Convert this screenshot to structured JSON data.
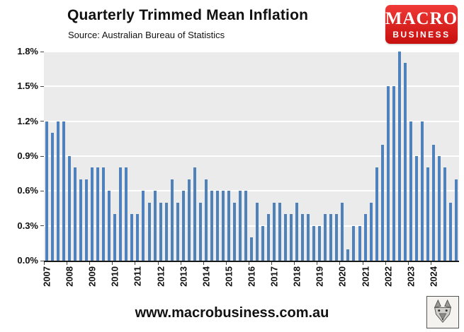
{
  "header": {
    "title": "Quarterly Trimmed Mean Inflation",
    "subtitle": "Source: Australian Bureau of Statistics",
    "logo": {
      "line1": "MACRO",
      "line2": "BUSINESS",
      "bg_color": "#d71920"
    }
  },
  "footer": {
    "url": "www.macrobusiness.com.au",
    "logo_icon": "wolf-head"
  },
  "chart_data": {
    "type": "bar",
    "title": "Quarterly Trimmed Mean Inflation",
    "subtitle": "Source: Australian Bureau of Statistics",
    "xlabel": "",
    "ylabel": "",
    "ylim": [
      0,
      1.8
    ],
    "grid": true,
    "plot_bg_color": "#ebebeb",
    "gridline_color": "#ffffff",
    "bar_color": "#4f81bd",
    "yticks": [
      {
        "value": 0.0,
        "label": "0.0%"
      },
      {
        "value": 0.3,
        "label": "0.3%"
      },
      {
        "value": 0.6,
        "label": "0.6%"
      },
      {
        "value": 0.9,
        "label": "0.9%"
      },
      {
        "value": 1.2,
        "label": "1.2%"
      },
      {
        "value": 1.5,
        "label": "1.5%"
      },
      {
        "value": 1.8,
        "label": "1.8%"
      }
    ],
    "year_labels": [
      "2007",
      "2008",
      "2009",
      "2010",
      "2011",
      "2012",
      "2013",
      "2014",
      "2015",
      "2016",
      "2017",
      "2018",
      "2019",
      "2020",
      "2021",
      "2022",
      "2023",
      "2024"
    ],
    "x": [
      "2007Q1",
      "2007Q2",
      "2007Q3",
      "2007Q4",
      "2008Q1",
      "2008Q2",
      "2008Q3",
      "2008Q4",
      "2009Q1",
      "2009Q2",
      "2009Q3",
      "2009Q4",
      "2010Q1",
      "2010Q2",
      "2010Q3",
      "2010Q4",
      "2011Q1",
      "2011Q2",
      "2011Q3",
      "2011Q4",
      "2012Q1",
      "2012Q2",
      "2012Q3",
      "2012Q4",
      "2013Q1",
      "2013Q2",
      "2013Q3",
      "2013Q4",
      "2014Q1",
      "2014Q2",
      "2014Q3",
      "2014Q4",
      "2015Q1",
      "2015Q2",
      "2015Q3",
      "2015Q4",
      "2016Q1",
      "2016Q2",
      "2016Q3",
      "2016Q4",
      "2017Q1",
      "2017Q2",
      "2017Q3",
      "2017Q4",
      "2018Q1",
      "2018Q2",
      "2018Q3",
      "2018Q4",
      "2019Q1",
      "2019Q2",
      "2019Q3",
      "2019Q4",
      "2020Q1",
      "2020Q2",
      "2020Q3",
      "2020Q4",
      "2021Q1",
      "2021Q2",
      "2021Q3",
      "2021Q4",
      "2022Q1",
      "2022Q2",
      "2022Q3",
      "2022Q4",
      "2023Q1",
      "2023Q2",
      "2023Q3",
      "2023Q4",
      "2024Q1",
      "2024Q2",
      "2024Q3",
      "2024Q4",
      "2025Q1"
    ],
    "values": [
      1.2,
      1.1,
      1.2,
      1.2,
      0.9,
      0.8,
      0.7,
      0.7,
      0.8,
      0.8,
      0.8,
      0.6,
      0.4,
      0.8,
      0.8,
      0.4,
      0.4,
      0.6,
      0.5,
      0.6,
      0.5,
      0.5,
      0.7,
      0.5,
      0.6,
      0.7,
      0.8,
      0.5,
      0.7,
      0.6,
      0.6,
      0.6,
      0.6,
      0.5,
      0.6,
      0.6,
      0.2,
      0.5,
      0.3,
      0.4,
      0.5,
      0.5,
      0.4,
      0.4,
      0.5,
      0.4,
      0.4,
      0.3,
      0.3,
      0.4,
      0.4,
      0.4,
      0.5,
      0.1,
      0.3,
      0.3,
      0.4,
      0.5,
      0.8,
      1.0,
      1.5,
      1.5,
      1.8,
      1.7,
      1.2,
      0.9,
      1.2,
      0.8,
      1.0,
      0.9,
      0.8,
      0.5,
      0.7
    ]
  }
}
